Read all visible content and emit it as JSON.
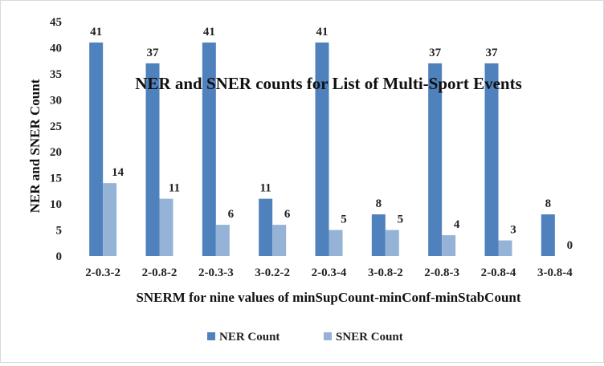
{
  "chart_data": {
    "type": "bar",
    "title": "NER and SNER counts for List of Multi-Sport Events",
    "xlabel": "SNERM for nine values of minSupCount-minConf-minStabCount",
    "ylabel": "NER and SNER Count",
    "categories": [
      "2-0.3-2",
      "2-0.8-2",
      "2-0.3-3",
      "3-0.2-2",
      "2-0.3-4",
      "3-0.8-2",
      "2-0.8-3",
      "2-0.8-4",
      "3-0.8-4"
    ],
    "series": [
      {
        "name": "NER Count",
        "color": "#4f81bd",
        "values": [
          41,
          37,
          41,
          11,
          41,
          8,
          37,
          37,
          8
        ]
      },
      {
        "name": "SNER Count",
        "color": "#95b3d7",
        "values": [
          14,
          11,
          6,
          6,
          5,
          5,
          4,
          3,
          0
        ]
      }
    ],
    "ylim": [
      0,
      45
    ],
    "yticks": [
      "0",
      "5",
      "10",
      "15",
      "20",
      "25",
      "30",
      "35",
      "40",
      "45"
    ],
    "grid": false,
    "legend_position": "bottom"
  }
}
